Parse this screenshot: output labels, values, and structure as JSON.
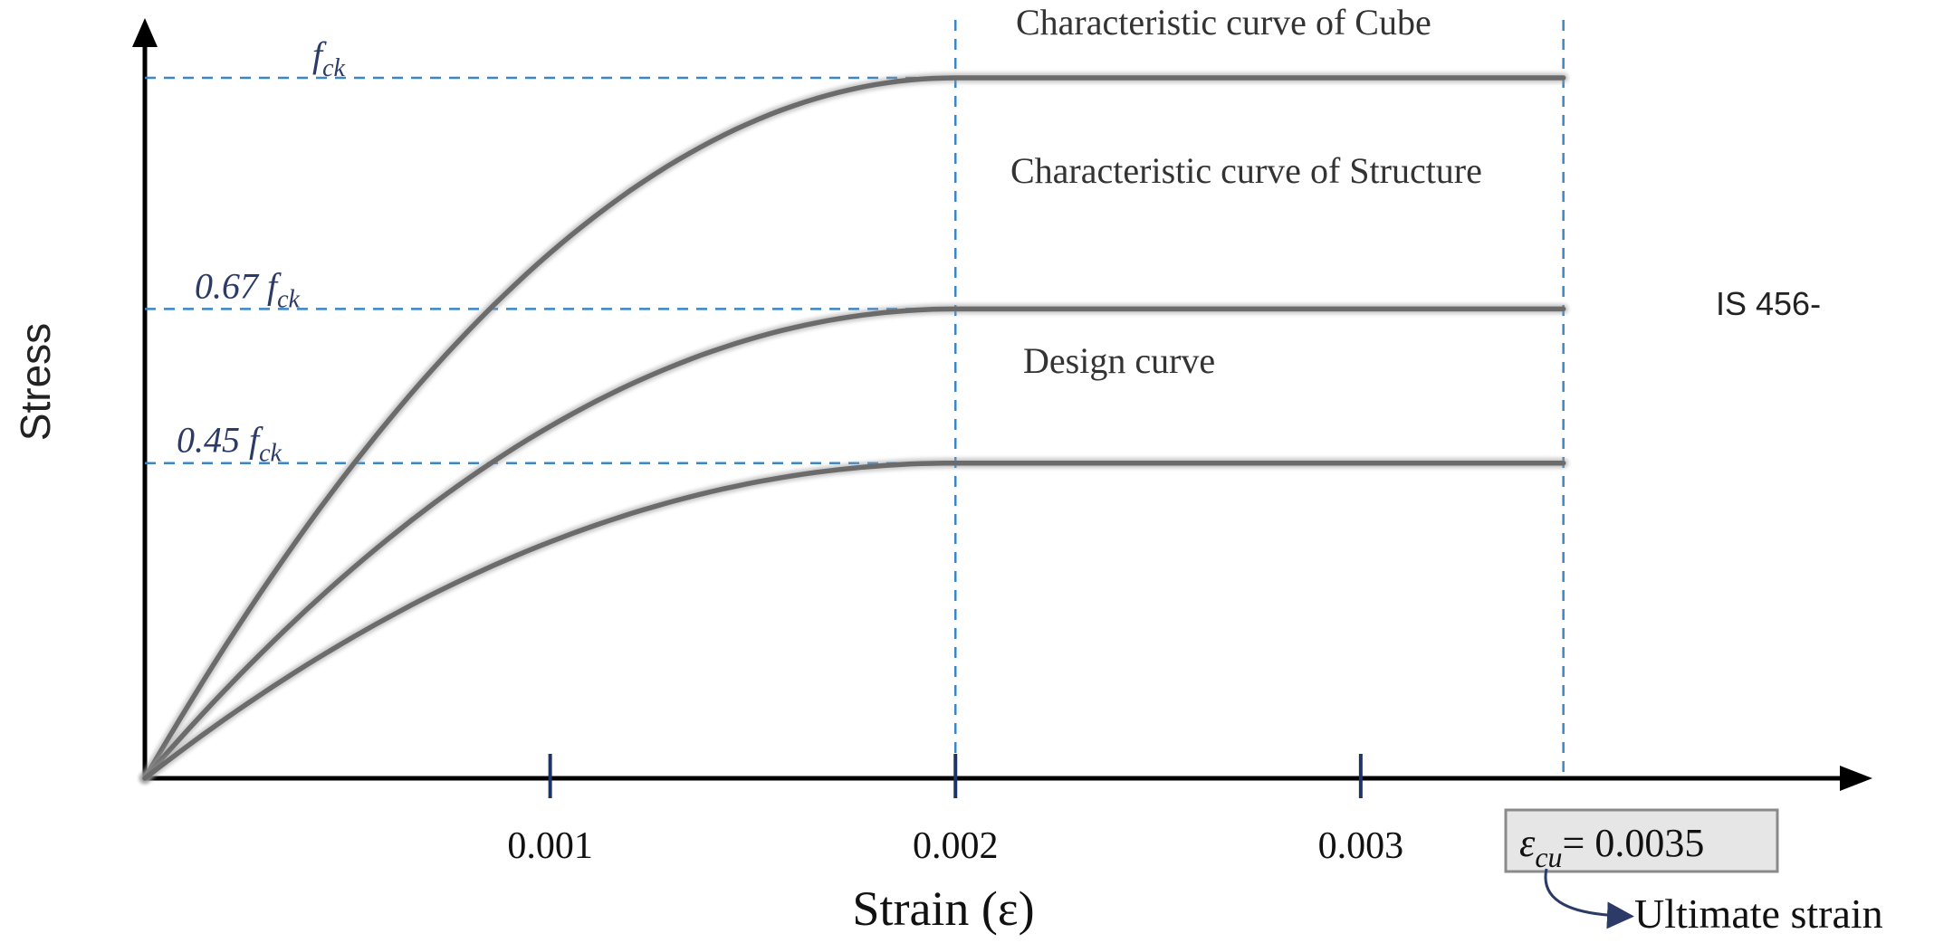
{
  "chart_data": {
    "type": "line",
    "xlabel": "Strain (ε)",
    "ylabel": "Stress",
    "side_note": "IS 456-",
    "x_ticks": [
      0.001,
      0.002,
      0.003
    ],
    "x_tick_labels": [
      "0.001",
      "0.002",
      "0.003"
    ],
    "xlim": [
      0,
      0.0042
    ],
    "y_levels": [
      {
        "label_main": "f",
        "label_sub": "ck",
        "value": 1.0
      },
      {
        "label_main": "0.67 f",
        "label_sub": "ck",
        "value": 0.67
      },
      {
        "label_main": "0.45 f",
        "label_sub": "ck",
        "value": 0.45
      }
    ],
    "series": [
      {
        "name": "Characteristic curve of Cube",
        "peak": 1.0,
        "peak_strain": 0.002,
        "end_strain": 0.0035
      },
      {
        "name": "Characteristic curve of Structure",
        "peak": 0.67,
        "peak_strain": 0.002,
        "end_strain": 0.0035
      },
      {
        "name": "Design curve",
        "peak": 0.45,
        "peak_strain": 0.002,
        "end_strain": 0.0035
      }
    ],
    "ultimate_strain": {
      "symbol": "ε",
      "symbol_sub": "cu",
      "value_text": "= 0.0035",
      "note": "Ultimate strain",
      "value": 0.0035
    },
    "colors": {
      "curve": "#6b6b6b",
      "guide": "#3a86c8",
      "axis": "#000000",
      "level_label": "#2b3a67",
      "box_fill": "#e6e6e6"
    }
  }
}
